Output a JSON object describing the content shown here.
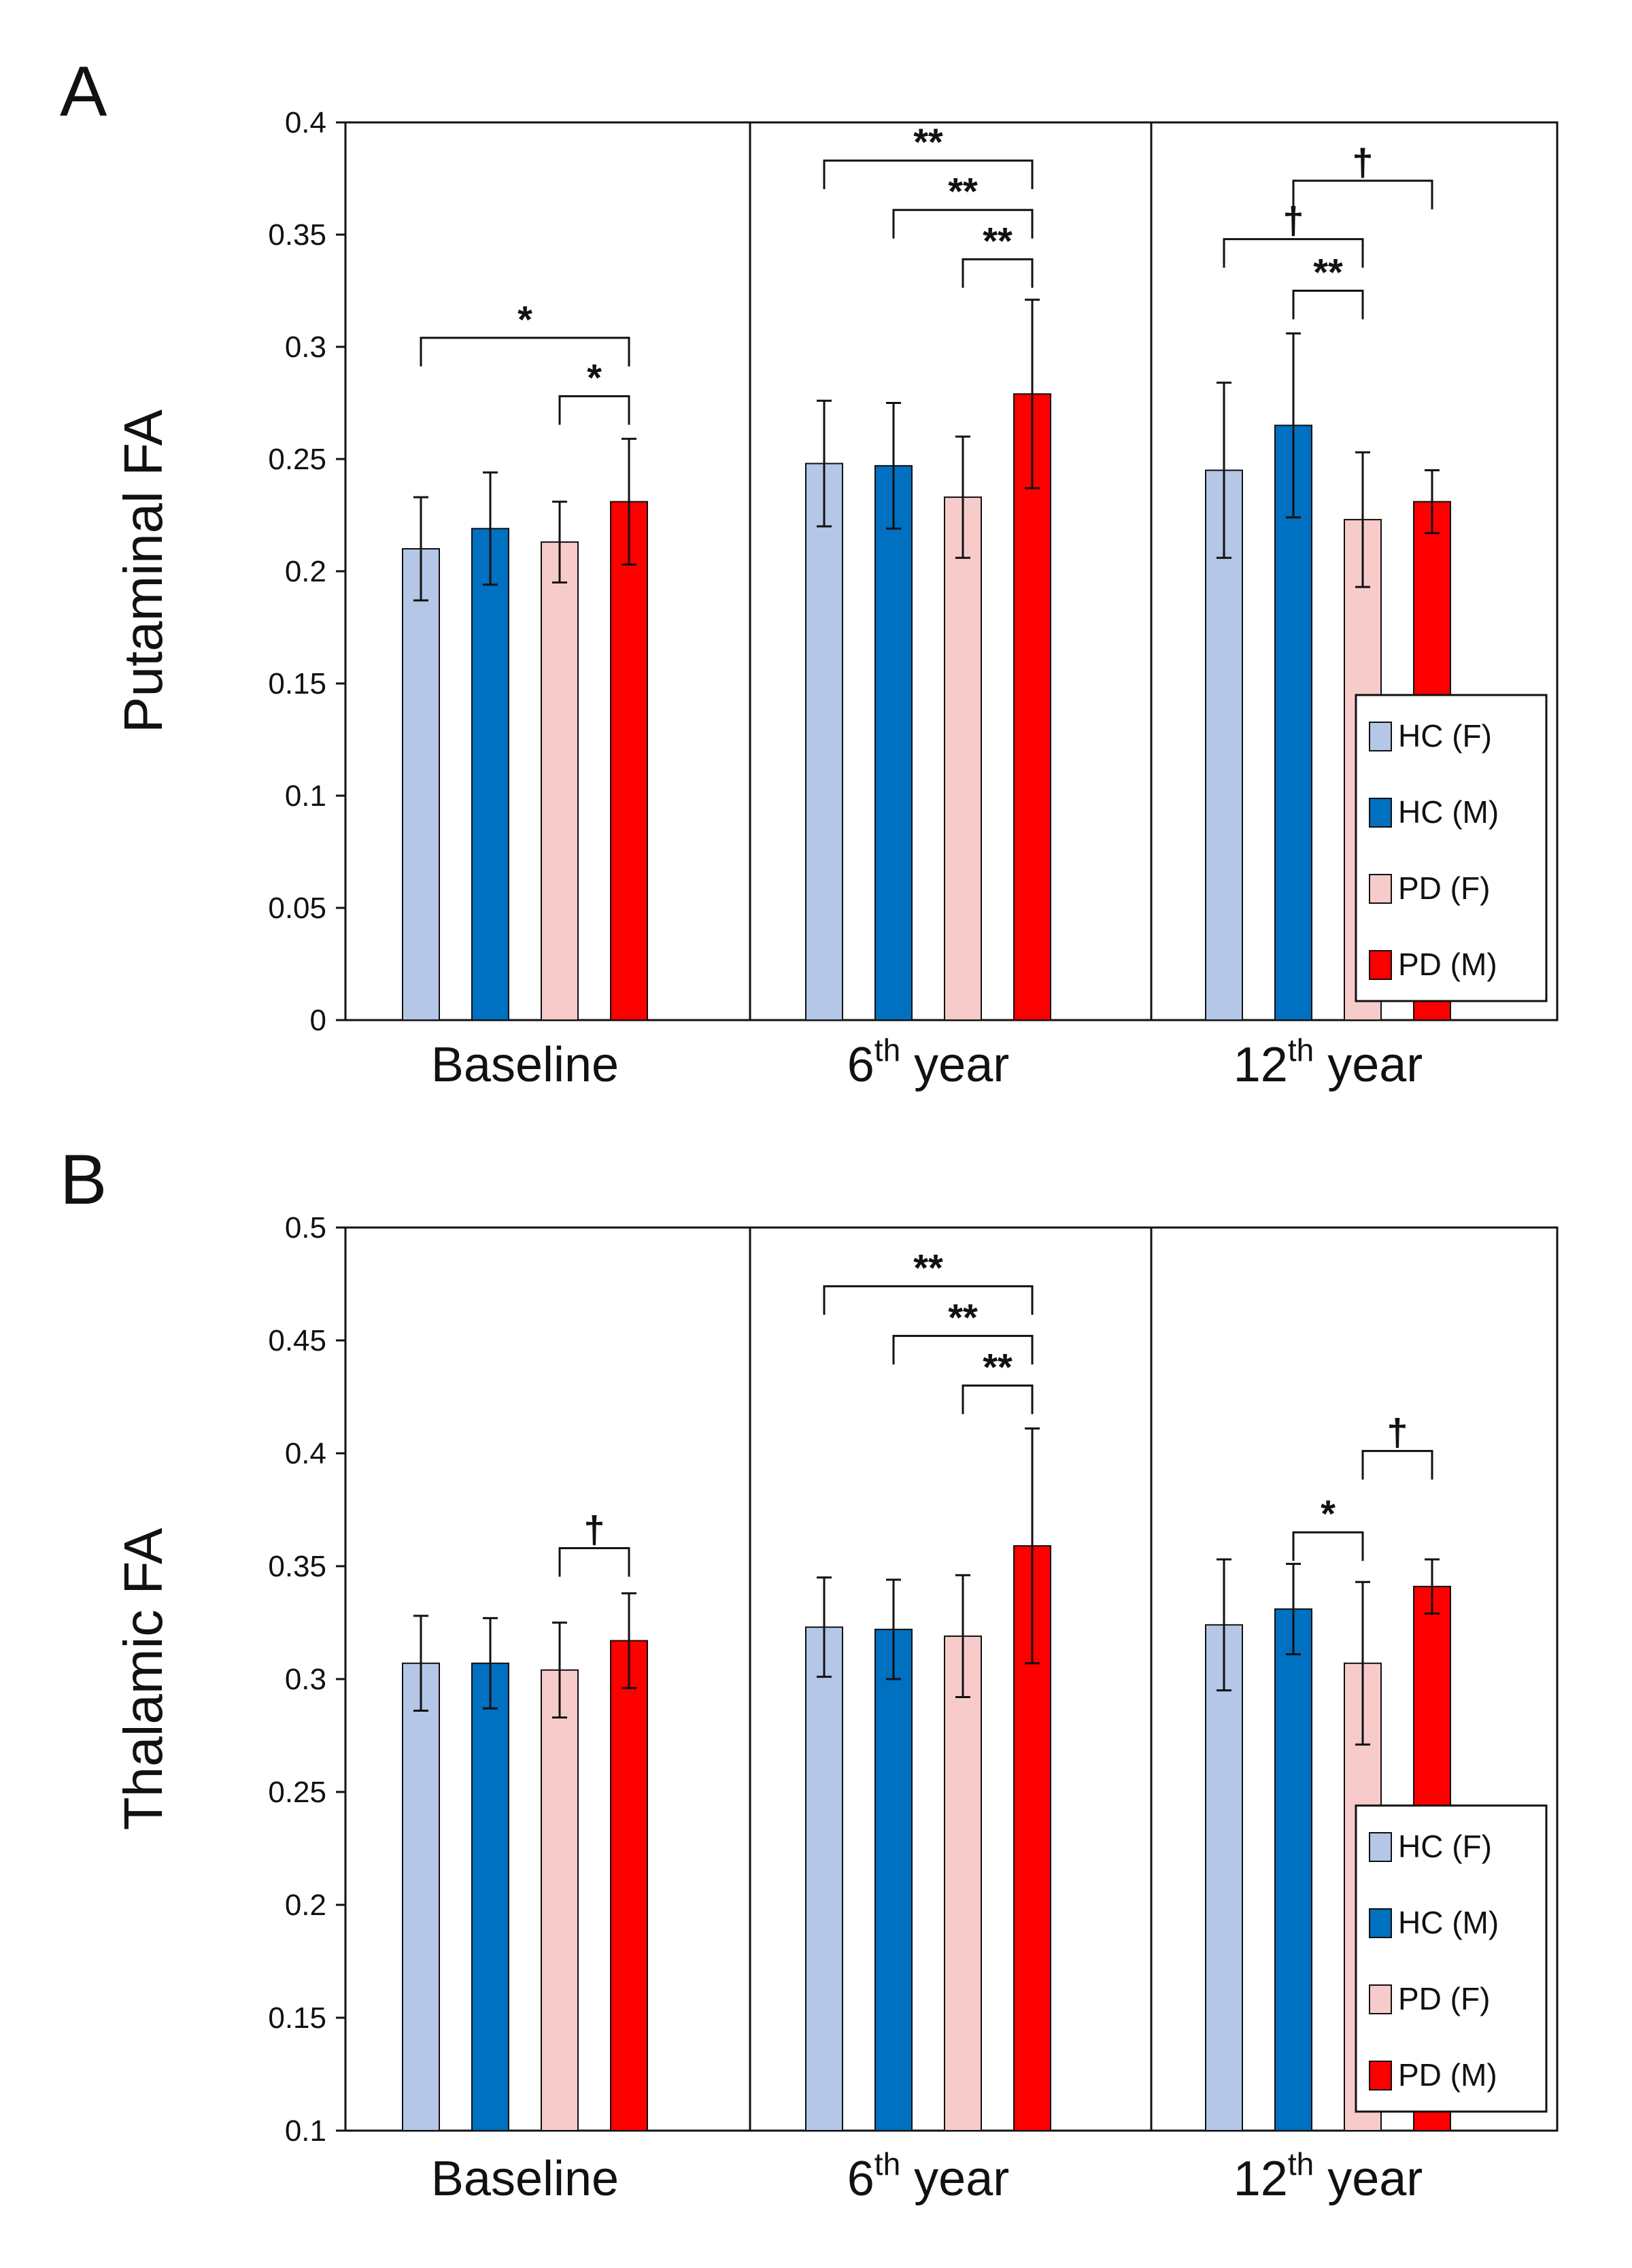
{
  "chart_data": [
    {
      "panel": "A",
      "type": "bar",
      "ylabel": "Putaminal FA",
      "ylim": [
        0,
        0.4
      ],
      "yticks": [
        "0",
        "0.05",
        "0.1",
        "0.15",
        "0.2",
        "0.25",
        "0.3",
        "0.35",
        "0.4"
      ],
      "categories": [
        {
          "main": "Baseline",
          "sup": "",
          "suffix": ""
        },
        {
          "main": "6",
          "sup": "th",
          "suffix": " year"
        },
        {
          "main": "12",
          "sup": "th",
          "suffix": " year"
        }
      ],
      "series": [
        {
          "name": "HC (F)",
          "color": "#b4c7e7",
          "values": [
            0.21,
            0.248,
            0.245
          ],
          "errors": [
            0.023,
            0.028,
            0.039
          ]
        },
        {
          "name": "HC (M)",
          "color": "#0070c0",
          "values": [
            0.219,
            0.247,
            0.265
          ],
          "errors": [
            0.025,
            0.028,
            0.041
          ]
        },
        {
          "name": "PD (F)",
          "color": "#f8cbcb",
          "values": [
            0.213,
            0.233,
            0.223
          ],
          "errors": [
            0.018,
            0.027,
            0.03
          ]
        },
        {
          "name": "PD (M)",
          "color": "#ff0000",
          "values": [
            0.231,
            0.279,
            0.231
          ],
          "errors": [
            0.028,
            0.042,
            0.014
          ]
        }
      ],
      "significance": [
        {
          "category": 0,
          "from": 0,
          "to": 3,
          "y": 0.304,
          "label": "*"
        },
        {
          "category": 0,
          "from": 2,
          "to": 3,
          "y": 0.278,
          "label": "*"
        },
        {
          "category": 1,
          "from": 0,
          "to": 3,
          "y": 0.383,
          "label": "**"
        },
        {
          "category": 1,
          "from": 1,
          "to": 3,
          "y": 0.361,
          "label": "**"
        },
        {
          "category": 1,
          "from": 2,
          "to": 3,
          "y": 0.339,
          "label": "**"
        },
        {
          "category": 2,
          "from": 0,
          "to": 2,
          "y": 0.348,
          "label": "†"
        },
        {
          "category": 2,
          "from": 1,
          "to": 2,
          "y": 0.325,
          "label": "**"
        },
        {
          "category": 2,
          "from": 1,
          "to": 3,
          "y": 0.374,
          "label": "†"
        }
      ],
      "legend_position": "bottom-right"
    },
    {
      "panel": "B",
      "type": "bar",
      "ylabel": "Thalamic FA",
      "ylim": [
        0.1,
        0.5
      ],
      "yticks": [
        "0.1",
        "0.15",
        "0.2",
        "0.25",
        "0.3",
        "0.35",
        "0.4",
        "0.45",
        "0.5"
      ],
      "categories": [
        {
          "main": "Baseline",
          "sup": "",
          "suffix": ""
        },
        {
          "main": "6",
          "sup": "th",
          "suffix": " year"
        },
        {
          "main": "12",
          "sup": "th",
          "suffix": " year"
        }
      ],
      "series": [
        {
          "name": "HC (F)",
          "color": "#b4c7e7",
          "values": [
            0.307,
            0.323,
            0.324
          ],
          "errors": [
            0.021,
            0.022,
            0.029
          ]
        },
        {
          "name": "HC (M)",
          "color": "#0070c0",
          "values": [
            0.307,
            0.322,
            0.331
          ],
          "errors": [
            0.02,
            0.022,
            0.02
          ]
        },
        {
          "name": "PD (F)",
          "color": "#f8cbcb",
          "values": [
            0.304,
            0.319,
            0.307
          ],
          "errors": [
            0.021,
            0.027,
            0.036
          ]
        },
        {
          "name": "PD (M)",
          "color": "#ff0000",
          "values": [
            0.317,
            0.359,
            0.341
          ],
          "errors": [
            0.021,
            0.052,
            0.012
          ]
        }
      ],
      "significance": [
        {
          "category": 0,
          "from": 2,
          "to": 3,
          "y": 0.358,
          "label": "†"
        },
        {
          "category": 1,
          "from": 0,
          "to": 3,
          "y": 0.474,
          "label": "**"
        },
        {
          "category": 1,
          "from": 1,
          "to": 3,
          "y": 0.452,
          "label": "**"
        },
        {
          "category": 1,
          "from": 2,
          "to": 3,
          "y": 0.43,
          "label": "**"
        },
        {
          "category": 2,
          "from": 1,
          "to": 2,
          "y": 0.365,
          "label": "*"
        },
        {
          "category": 2,
          "from": 2,
          "to": 3,
          "y": 0.401,
          "label": "†"
        }
      ],
      "legend_position": "bottom-right"
    }
  ]
}
